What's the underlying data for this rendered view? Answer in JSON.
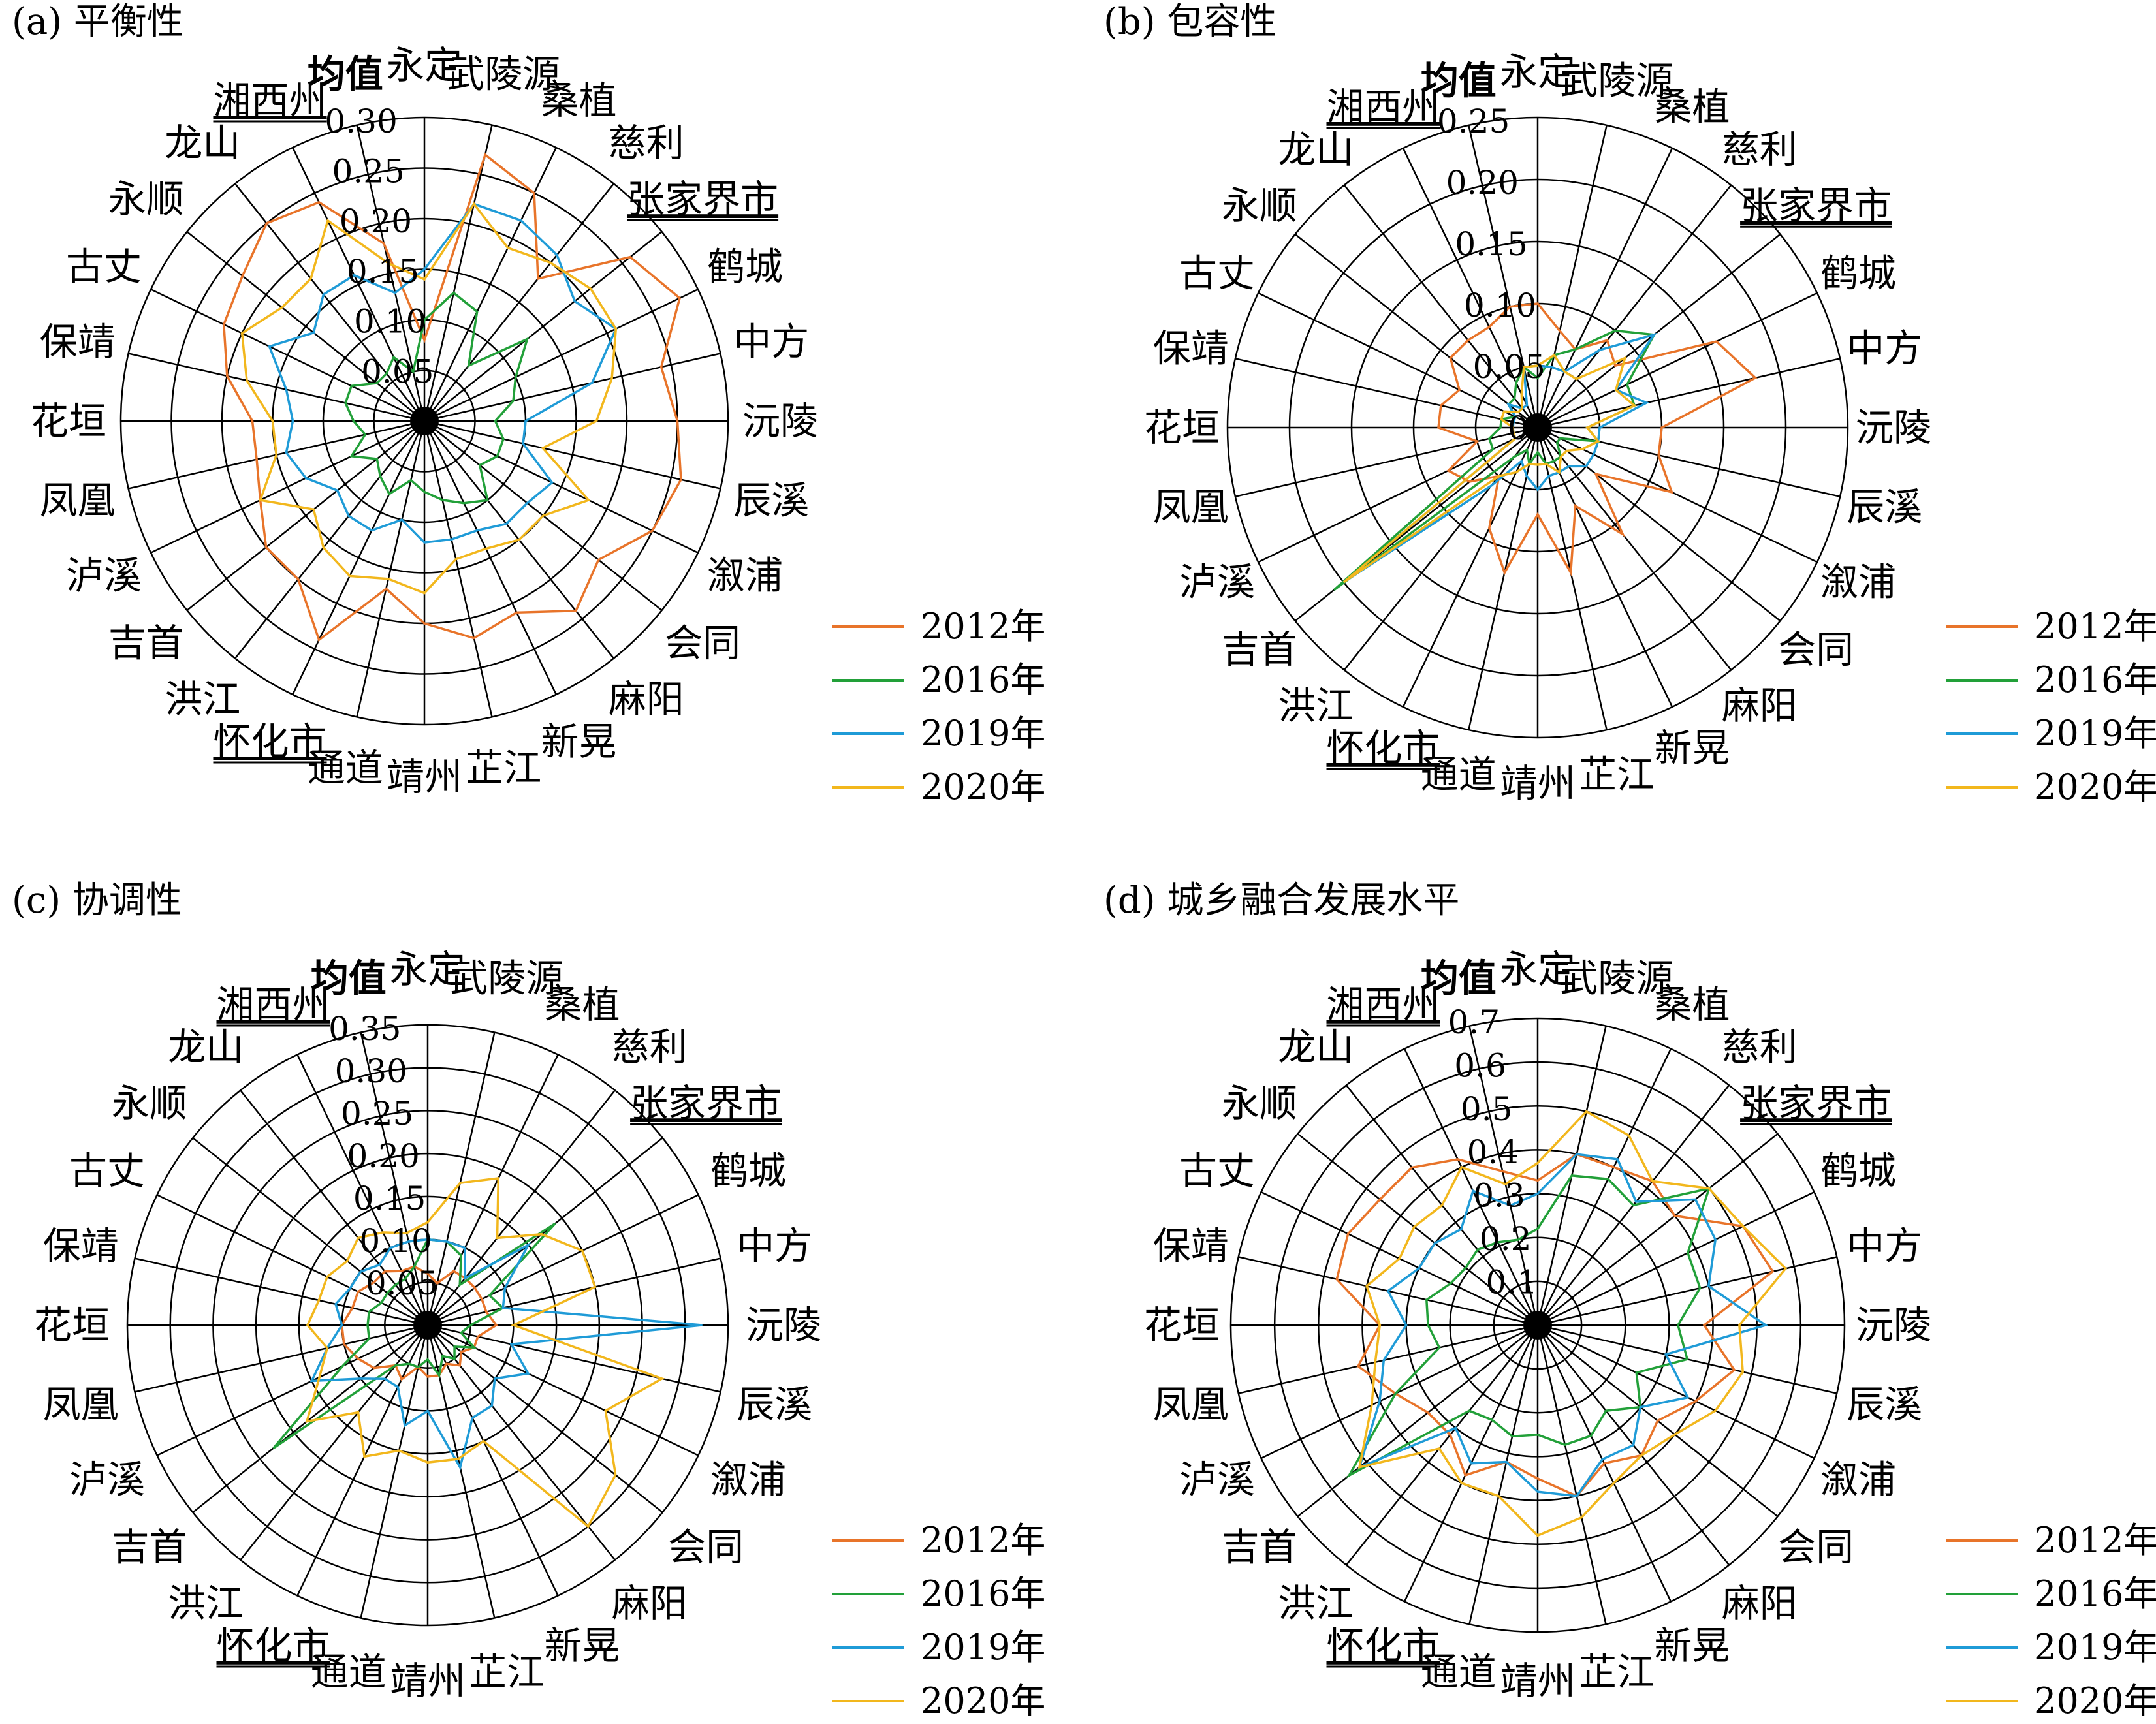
{
  "colors": {
    "2012年": "#E8742A",
    "2016年": "#22A039",
    "2019年": "#1F9BD7",
    "2020年": "#F2B71D",
    "axis": "#000000"
  },
  "underlined_categories": [
    "湘西州",
    "张家界市",
    "怀化市"
  ],
  "bold_categories": [
    "均值"
  ],
  "chart_data": [
    {
      "type": "radar",
      "title": "(a) 平衡性",
      "categories": [
        "永定",
        "武陵源",
        "桑植",
        "慈利",
        "张家界市",
        "鹤城",
        "中方",
        "沅陵",
        "辰溪",
        "溆浦",
        "会同",
        "麻阳",
        "新晃",
        "芷江",
        "靖州",
        "通道",
        "怀化市",
        "洪江",
        "吉首",
        "泸溪",
        "凤凰",
        "花垣",
        "保靖",
        "古丈",
        "永顺",
        "龙山",
        "湘西州",
        "均值"
      ],
      "rmax": 0.3,
      "ticks": [
        0.05,
        0.1,
        0.15,
        0.2,
        0.25,
        0.3
      ],
      "tick_labels": [
        "0.05",
        "0.10",
        "0.15",
        "0.20",
        "0.25",
        "0.30"
      ],
      "legend": [
        "2012年",
        "2016年",
        "2019年",
        "2020年"
      ],
      "series": [
        {
          "name": "2012年",
          "values": [
            0.08,
            0.27,
            0.25,
            0.18,
            0.26,
            0.28,
            0.24,
            0.25,
            0.26,
            0.25,
            0.22,
            0.24,
            0.21,
            0.22,
            0.2,
            0.17,
            0.24,
            0.2,
            0.2,
            0.18,
            0.17,
            0.17,
            0.2,
            0.22,
            0.23,
            0.25,
            0.24,
            0.18
          ]
        },
        {
          "name": "2016年",
          "values": [
            0.1,
            0.13,
            0.12,
            0.07,
            0.13,
            0.1,
            0.09,
            0.07,
            0.08,
            0.08,
            0.07,
            0.1,
            0.09,
            0.08,
            0.07,
            0.06,
            0.08,
            0.07,
            0.06,
            0.08,
            0.06,
            0.07,
            0.08,
            0.08,
            0.06,
            0.06,
            0.07,
            0.05
          ]
        },
        {
          "name": "2019年",
          "values": [
            0.15,
            0.22,
            0.22,
            0.21,
            0.19,
            0.21,
            0.17,
            0.1,
            0.1,
            0.14,
            0.13,
            0.13,
            0.12,
            0.12,
            0.12,
            0.1,
            0.12,
            0.12,
            0.11,
            0.13,
            0.14,
            0.13,
            0.14,
            0.17,
            0.14,
            0.16,
            0.16,
            0.13
          ]
        },
        {
          "name": "2020年",
          "values": [
            0.14,
            0.22,
            0.19,
            0.2,
            0.21,
            0.21,
            0.19,
            0.17,
            0.12,
            0.18,
            0.15,
            0.15,
            0.14,
            0.14,
            0.17,
            0.16,
            0.17,
            0.16,
            0.14,
            0.18,
            0.15,
            0.15,
            0.18,
            0.2,
            0.18,
            0.18,
            0.22,
            0.16
          ]
        }
      ]
    },
    {
      "type": "radar",
      "title": "(b) 包容性",
      "categories": [
        "永定",
        "武陵源",
        "桑植",
        "慈利",
        "张家界市",
        "鹤城",
        "中方",
        "沅陵",
        "辰溪",
        "溆浦",
        "会同",
        "麻阳",
        "新晃",
        "芷江",
        "靖州",
        "通道",
        "怀化市",
        "洪江",
        "吉首",
        "泸溪",
        "凤凰",
        "花垣",
        "保靖",
        "古丈",
        "永顺",
        "龙山",
        "湘西州",
        "均值"
      ],
      "rmax": 0.25,
      "ticks": [
        0,
        0.05,
        0.1,
        0.15,
        0.2,
        0.25
      ],
      "tick_labels": [
        "0",
        "0.05",
        "0.10",
        "0.15",
        "0.20",
        "0.25"
      ],
      "legend": [
        "2012年",
        "2016年",
        "2019年",
        "2020年"
      ],
      "series": [
        {
          "name": "2012年",
          "values": [
            0.1,
            0.08,
            0.07,
            0.09,
            0.08,
            0.16,
            0.18,
            0.1,
            0.1,
            0.12,
            0.06,
            0.11,
            0.07,
            0.12,
            0.07,
            0.12,
            0.09,
            0.05,
            0.07,
            0.08,
            0.05,
            0.08,
            0.08,
            0.07,
            0.09,
            0.09,
            0.09,
            0.1
          ]
        },
        {
          "name": "2016年",
          "values": [
            0.04,
            0.06,
            0.07,
            0.1,
            0.12,
            0.08,
            0.08,
            0.04,
            0.05,
            0.02,
            0.02,
            0.03,
            0.03,
            0.03,
            0.02,
            0.03,
            0.02,
            0.03,
            0.21,
            0.04,
            0.04,
            0.03,
            0.03,
            0.02,
            0.03,
            0.03,
            0.04,
            0.05
          ]
        },
        {
          "name": "2019年",
          "values": [
            0.05,
            0.05,
            0.05,
            0.08,
            0.12,
            0.07,
            0.09,
            0.05,
            0.05,
            0.05,
            0.05,
            0.04,
            0.04,
            0.04,
            0.05,
            0.04,
            0.03,
            0.06,
            0.2,
            0.02,
            0.02,
            0.02,
            0.02,
            0.02,
            0.03,
            0.02,
            0.02,
            0.05
          ]
        },
        {
          "name": "2020年",
          "values": [
            0.05,
            0.06,
            0.05,
            0.05,
            0.09,
            0.07,
            0.08,
            0.04,
            0.05,
            0.04,
            0.03,
            0.03,
            0.04,
            0.03,
            0.03,
            0.03,
            0.04,
            0.05,
            0.2,
            0.02,
            0.02,
            0.02,
            0.03,
            0.03,
            0.02,
            0.02,
            0.03,
            0.05
          ]
        }
      ]
    },
    {
      "type": "radar",
      "title": "(c) 协调性",
      "categories": [
        "永定",
        "武陵源",
        "桑植",
        "慈利",
        "张家界市",
        "鹤城",
        "中方",
        "沅陵",
        "辰溪",
        "溆浦",
        "会同",
        "麻阳",
        "新晃",
        "芷江",
        "靖州",
        "通道",
        "怀化市",
        "洪江",
        "吉首",
        "泸溪",
        "凤凰",
        "花垣",
        "保靖",
        "古丈",
        "永顺",
        "龙山",
        "湘西州",
        "均值"
      ],
      "rmax": 0.35,
      "ticks": [
        0.05,
        0.1,
        0.15,
        0.2,
        0.25,
        0.3,
        0.35
      ],
      "tick_labels": [
        "0.05",
        "0.10",
        "0.15",
        "0.20",
        "0.25",
        "0.30",
        "0.35"
      ],
      "legend": [
        "2012年",
        "2016年",
        "2019年",
        "2020年"
      ],
      "series": [
        {
          "name": "2012年",
          "values": [
            0.06,
            0.05,
            0.07,
            0.07,
            0.07,
            0.07,
            0.07,
            0.08,
            0.06,
            0.06,
            0.05,
            0.06,
            0.05,
            0.06,
            0.06,
            0.05,
            0.07,
            0.06,
            0.08,
            0.09,
            0.1,
            0.1,
            0.09,
            0.09,
            0.08,
            0.08,
            0.07,
            0.07
          ]
        },
        {
          "name": "2016年",
          "values": [
            0.1,
            0.1,
            0.09,
            0.06,
            0.19,
            0.08,
            0.09,
            0.05,
            0.04,
            0.06,
            0.04,
            0.05,
            0.04,
            0.06,
            0.04,
            0.05,
            0.05,
            0.06,
            0.23,
            0.11,
            0.07,
            0.07,
            0.07,
            0.06,
            0.06,
            0.06,
            0.06,
            0.07
          ]
        },
        {
          "name": "2019年",
          "values": [
            0.1,
            0.1,
            0.1,
            0.07,
            0.15,
            0.1,
            0.09,
            0.32,
            0.1,
            0.13,
            0.1,
            0.12,
            0.12,
            0.17,
            0.1,
            0.12,
            0.08,
            0.08,
            0.1,
            0.15,
            0.12,
            0.1,
            0.11,
            0.1,
            0.1,
            0.09,
            0.1,
            0.1
          ]
        },
        {
          "name": "2020年",
          "values": [
            0.12,
            0.17,
            0.19,
            0.13,
            0.17,
            0.2,
            0.2,
            0.1,
            0.28,
            0.23,
            0.28,
            0.3,
            0.15,
            0.16,
            0.16,
            0.15,
            0.17,
            0.13,
            0.18,
            0.14,
            0.12,
            0.14,
            0.13,
            0.13,
            0.12,
            0.13,
            0.12,
            0.11
          ]
        }
      ]
    },
    {
      "type": "radar",
      "title": "(d) 城乡融合发展水平",
      "categories": [
        "永定",
        "武陵源",
        "桑植",
        "慈利",
        "张家界市",
        "鹤城",
        "中方",
        "沅陵",
        "辰溪",
        "溆浦",
        "会同",
        "麻阳",
        "新晃",
        "芷江",
        "靖州",
        "通道",
        "怀化市",
        "洪江",
        "吉首",
        "泸溪",
        "凤凰",
        "花垣",
        "保靖",
        "古丈",
        "永顺",
        "龙山",
        "湘西州",
        "均值"
      ],
      "rmax": 0.7,
      "ticks": [
        0.1,
        0.2,
        0.3,
        0.4,
        0.5,
        0.6,
        0.7
      ],
      "tick_labels": [
        "0.1",
        "0.2",
        "0.3",
        "0.4",
        "0.5",
        "0.6",
        "0.7"
      ],
      "legend": [
        "2012年",
        "2016年",
        "2019年",
        "2020年"
      ],
      "series": [
        {
          "name": "2012年",
          "values": [
            0.33,
            0.4,
            0.4,
            0.42,
            0.4,
            0.52,
            0.55,
            0.38,
            0.46,
            0.4,
            0.35,
            0.38,
            0.35,
            0.4,
            0.35,
            0.32,
            0.38,
            0.32,
            0.32,
            0.36,
            0.42,
            0.36,
            0.47,
            0.48,
            0.46,
            0.46,
            0.42,
            0.36
          ]
        },
        {
          "name": "2016年",
          "values": [
            0.22,
            0.35,
            0.37,
            0.35,
            0.5,
            0.38,
            0.38,
            0.32,
            0.35,
            0.25,
            0.3,
            0.25,
            0.28,
            0.28,
            0.25,
            0.26,
            0.24,
            0.25,
            0.55,
            0.36,
            0.23,
            0.25,
            0.26,
            0.22,
            0.21,
            0.22,
            0.21,
            0.2
          ]
        },
        {
          "name": "2019年",
          "values": [
            0.3,
            0.4,
            0.42,
            0.36,
            0.46,
            0.45,
            0.4,
            0.52,
            0.3,
            0.38,
            0.3,
            0.35,
            0.34,
            0.4,
            0.38,
            0.32,
            0.35,
            0.3,
            0.52,
            0.4,
            0.36,
            0.3,
            0.35,
            0.3,
            0.3,
            0.28,
            0.34,
            0.28
          ]
        },
        {
          "name": "2020年",
          "values": [
            0.37,
            0.5,
            0.48,
            0.42,
            0.5,
            0.52,
            0.58,
            0.46,
            0.48,
            0.45,
            0.4,
            0.38,
            0.4,
            0.45,
            0.48,
            0.4,
            0.4,
            0.36,
            0.52,
            0.42,
            0.38,
            0.36,
            0.4,
            0.35,
            0.36,
            0.35,
            0.4,
            0.33
          ]
        }
      ]
    }
  ]
}
